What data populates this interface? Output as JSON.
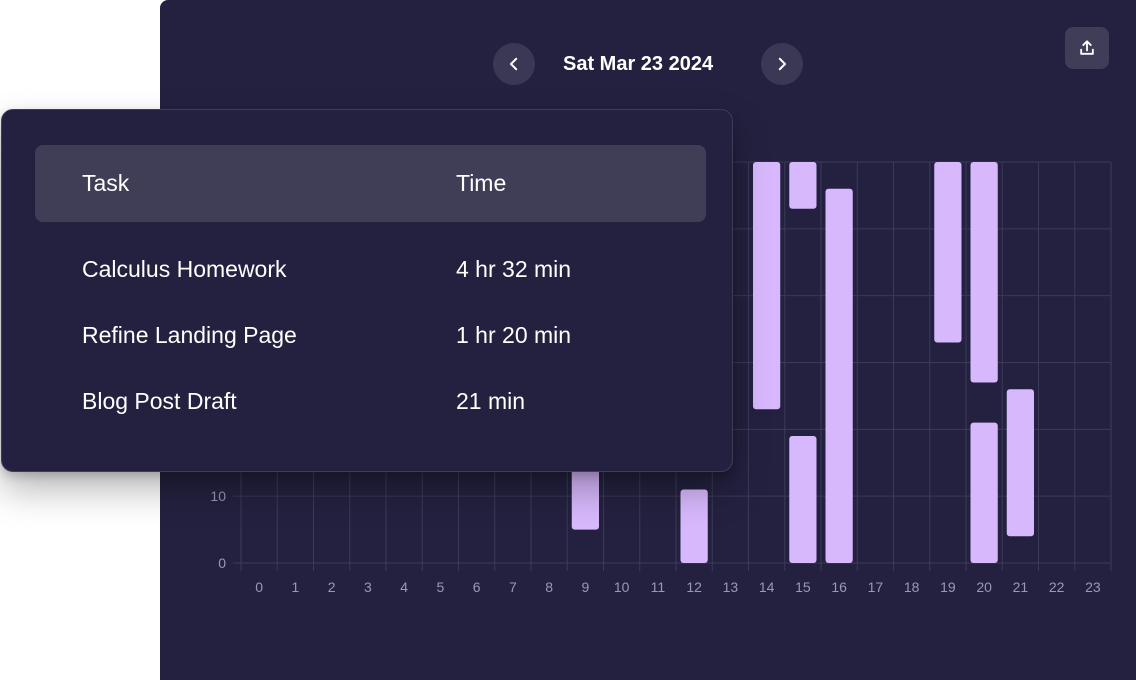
{
  "header": {
    "date": "Sat Mar 23 2024",
    "prev_icon": "chevron-left-icon",
    "next_icon": "chevron-right-icon",
    "export_icon": "upload-icon"
  },
  "table": {
    "columns": [
      "Task",
      "Time"
    ],
    "rows": [
      {
        "task": "Calculus Homework",
        "time": "4 hr 32 min"
      },
      {
        "task": "Refine Landing Page",
        "time": "1 hr 20 min"
      },
      {
        "task": "Blog Post Draft",
        "time": "21 min"
      }
    ]
  },
  "chart_data": {
    "type": "bar",
    "title": "",
    "xlabel": "",
    "ylabel": "",
    "x_ticks": [
      "0",
      "1",
      "2",
      "3",
      "4",
      "5",
      "6",
      "7",
      "8",
      "9",
      "10",
      "11",
      "12",
      "13",
      "14",
      "15",
      "16",
      "17",
      "18",
      "19",
      "20",
      "21",
      "22",
      "23"
    ],
    "y_ticks_visible": [
      "0",
      "10"
    ],
    "ylim": [
      0,
      60
    ],
    "grid": true,
    "bar_color": "#d7b8fc",
    "segments": [
      {
        "hour": 9,
        "start": 5,
        "end": 14
      },
      {
        "hour": 12,
        "start": 0,
        "end": 11
      },
      {
        "hour": 14,
        "start": 23,
        "end": 60
      },
      {
        "hour": 15,
        "start": 53,
        "end": 60
      },
      {
        "hour": 15,
        "start": 0,
        "end": 19
      },
      {
        "hour": 16,
        "start": 0,
        "end": 56
      },
      {
        "hour": 19,
        "start": 33,
        "end": 60
      },
      {
        "hour": 20,
        "start": 27,
        "end": 60
      },
      {
        "hour": 20,
        "start": 0,
        "end": 21
      },
      {
        "hour": 21,
        "start": 4,
        "end": 26
      }
    ]
  }
}
